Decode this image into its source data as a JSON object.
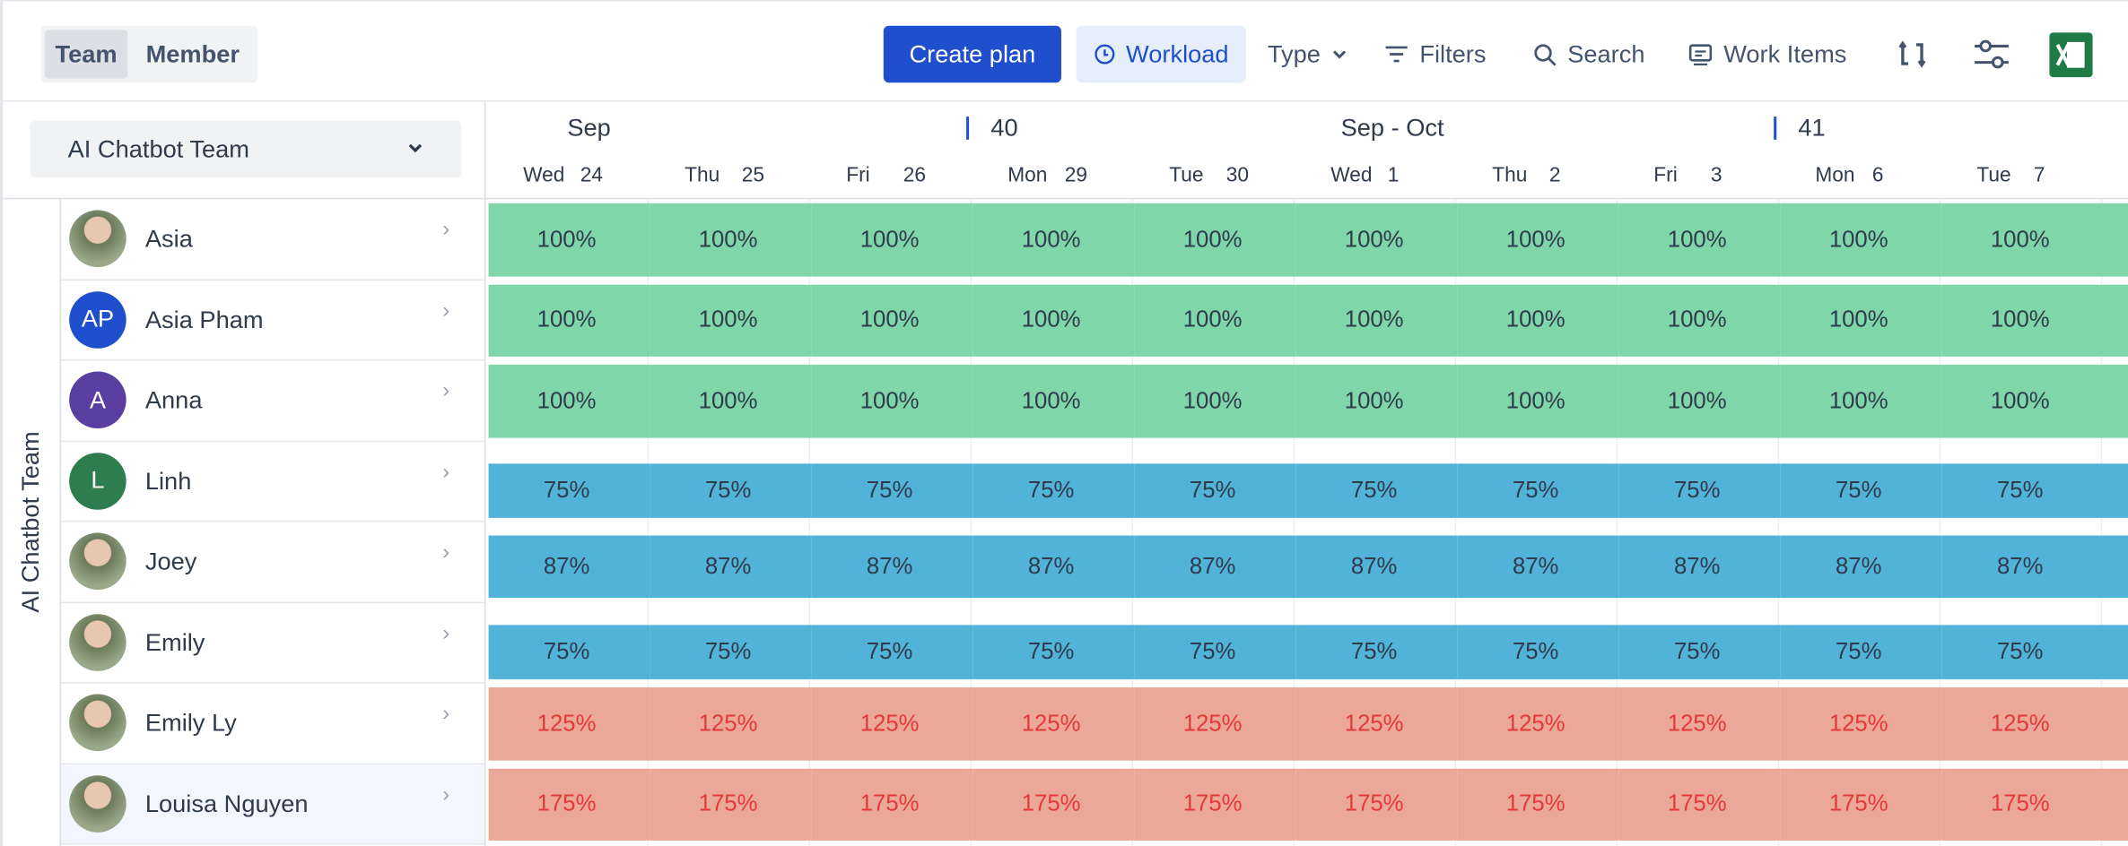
{
  "toolbar": {
    "view_tabs": [
      "Team",
      "Member"
    ],
    "create_plan": "Create plan",
    "workload": "Workload",
    "type": "Type",
    "filters": "Filters",
    "search": "Search",
    "work_items": "Work Items"
  },
  "team_selector": "AI Chatbot Team",
  "group_label": "AI Chatbot Team",
  "timeline": {
    "headers": [
      "Sep",
      "40",
      "Sep - Oct",
      "41"
    ],
    "days": [
      {
        "weekday": "Wed",
        "date": "24"
      },
      {
        "weekday": "Thu",
        "date": "25"
      },
      {
        "weekday": "Fri",
        "date": "26"
      },
      {
        "weekday": "Mon",
        "date": "29"
      },
      {
        "weekday": "Tue",
        "date": "30"
      },
      {
        "weekday": "Wed",
        "date": "1"
      },
      {
        "weekday": "Thu",
        "date": "2"
      },
      {
        "weekday": "Fri",
        "date": "3"
      },
      {
        "weekday": "Mon",
        "date": "6"
      },
      {
        "weekday": "Tue",
        "date": "7"
      }
    ]
  },
  "members": [
    {
      "name": "Asia",
      "cells": [
        "100%",
        "100%",
        "100%",
        "100%",
        "100%",
        "100%",
        "100%",
        "100%",
        "100%",
        "100%"
      ]
    },
    {
      "name": "Asia Pham",
      "initials": "AP",
      "avatar_color": "#1f4fcc",
      "cells": [
        "100%",
        "100%",
        "100%",
        "100%",
        "100%",
        "100%",
        "100%",
        "100%",
        "100%",
        "100%"
      ]
    },
    {
      "name": "Anna",
      "initials": "A",
      "avatar_color": "#5b3fa0",
      "cells": [
        "100%",
        "100%",
        "100%",
        "100%",
        "100%",
        "100%",
        "100%",
        "100%",
        "100%",
        "100%"
      ]
    },
    {
      "name": "Linh",
      "initials": "L",
      "avatar_color": "#2e7d4f",
      "cells": [
        "75%",
        "75%",
        "75%",
        "75%",
        "75%",
        "75%",
        "75%",
        "75%",
        "75%",
        "75%"
      ]
    },
    {
      "name": "Joey",
      "cells": [
        "87%",
        "87%",
        "87%",
        "87%",
        "87%",
        "87%",
        "87%",
        "87%",
        "87%",
        "87%"
      ]
    },
    {
      "name": "Emily",
      "cells": [
        "75%",
        "75%",
        "75%",
        "75%",
        "75%",
        "75%",
        "75%",
        "75%",
        "75%",
        "75%"
      ]
    },
    {
      "name": "Emily Ly",
      "cells": [
        "125%",
        "125%",
        "125%",
        "125%",
        "125%",
        "125%",
        "125%",
        "125%",
        "125%",
        "125%"
      ]
    },
    {
      "name": "Louisa Nguyen",
      "cells": [
        "175%",
        "175%",
        "175%",
        "175%",
        "175%",
        "175%",
        "175%",
        "175%",
        "175%",
        "175%"
      ]
    }
  ]
}
